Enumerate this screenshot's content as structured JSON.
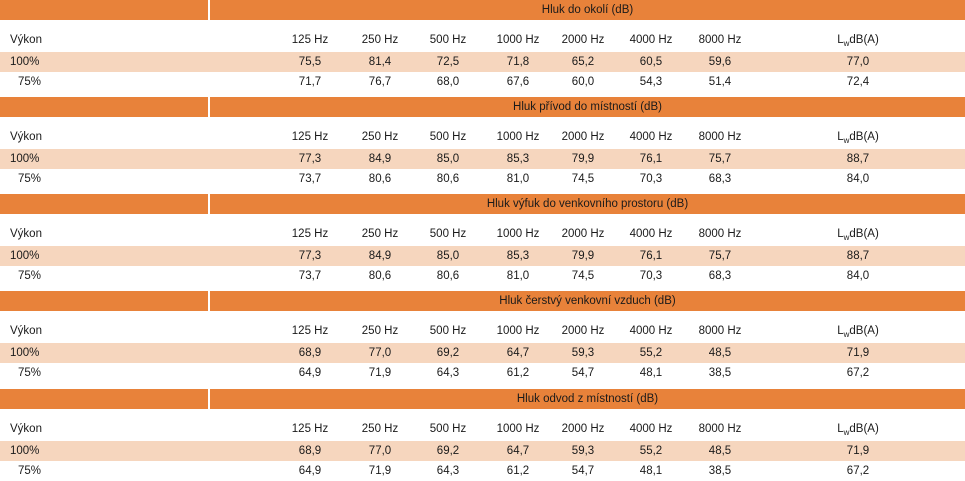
{
  "frequencies": [
    "125 Hz",
    "250 Hz",
    "500 Hz",
    "1000 Hz",
    "2000 Hz",
    "4000 Hz",
    "8000 Hz"
  ],
  "lw_label": {
    "L": "L",
    "sub": "w",
    "rest": "dB(A)"
  },
  "power_label": "Výkon",
  "tables": [
    {
      "title": "Hluk do okolí (dB)",
      "rows": [
        {
          "label": "100%",
          "values": [
            "75,5",
            "81,4",
            "72,5",
            "71,8",
            "65,2",
            "60,5",
            "59,6"
          ],
          "lw": "77,0"
        },
        {
          "label": "75%",
          "values": [
            "71,7",
            "76,7",
            "68,0",
            "67,6",
            "60,0",
            "54,3",
            "51,4"
          ],
          "lw": "72,4"
        }
      ]
    },
    {
      "title": "Hluk přívod do místností (dB)",
      "rows": [
        {
          "label": "100%",
          "values": [
            "77,3",
            "84,9",
            "85,0",
            "85,3",
            "79,9",
            "76,1",
            "75,7"
          ],
          "lw": "88,7"
        },
        {
          "label": "75%",
          "values": [
            "73,7",
            "80,6",
            "80,6",
            "81,0",
            "74,5",
            "70,3",
            "68,3"
          ],
          "lw": "84,0"
        }
      ]
    },
    {
      "title": "Hluk výfuk do venkovního prostoru (dB)",
      "rows": [
        {
          "label": "100%",
          "values": [
            "77,3",
            "84,9",
            "85,0",
            "85,3",
            "79,9",
            "76,1",
            "75,7"
          ],
          "lw": "88,7"
        },
        {
          "label": "75%",
          "values": [
            "73,7",
            "80,6",
            "80,6",
            "81,0",
            "74,5",
            "70,3",
            "68,3"
          ],
          "lw": "84,0"
        }
      ]
    },
    {
      "title": "Hluk čerstvý venkovní vzduch (dB)",
      "rows": [
        {
          "label": "100%",
          "values": [
            "68,9",
            "77,0",
            "69,2",
            "64,7",
            "59,3",
            "55,2",
            "48,5"
          ],
          "lw": "71,9"
        },
        {
          "label": "75%",
          "values": [
            "64,9",
            "71,9",
            "64,3",
            "61,2",
            "54,7",
            "48,1",
            "38,5"
          ],
          "lw": "67,2"
        }
      ]
    },
    {
      "title": "Hluk odvod z místností (dB)",
      "rows": [
        {
          "label": "100%",
          "values": [
            "68,9",
            "77,0",
            "69,2",
            "64,7",
            "59,3",
            "55,2",
            "48,5"
          ],
          "lw": "71,9"
        },
        {
          "label": "75%",
          "values": [
            "64,9",
            "71,9",
            "64,3",
            "61,2",
            "54,7",
            "48,1",
            "38,5"
          ],
          "lw": "67,2"
        }
      ]
    }
  ],
  "colors": {
    "header_bar": "#e8823a",
    "highlight_row": "#f6d6be"
  }
}
